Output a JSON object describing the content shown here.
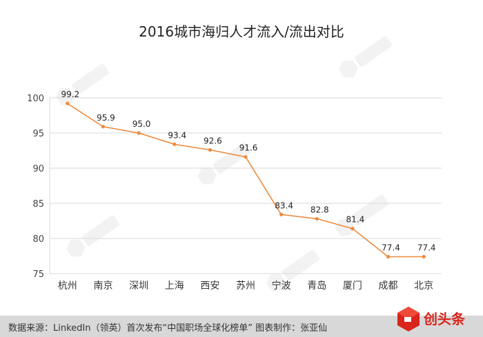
{
  "chart_data": {
    "type": "line",
    "title": "2016城市海归人才流入/流出对比",
    "categories": [
      "杭州",
      "南京",
      "深圳",
      "上海",
      "西安",
      "苏州",
      "宁波",
      "青岛",
      "厦门",
      "成都",
      "北京"
    ],
    "series": [
      {
        "values": [
          99.2,
          95.9,
          95.0,
          93.4,
          92.6,
          91.6,
          83.4,
          82.8,
          81.4,
          77.4,
          77.4
        ]
      }
    ],
    "data_labels": [
      "99.2",
      "95.9",
      "95.0",
      "93.4",
      "92.6",
      "91.6",
      "83.4",
      "82.8",
      "81.4",
      "77.4",
      "77.4"
    ],
    "ylim": [
      75,
      100
    ],
    "yticks": [
      75,
      80,
      85,
      90,
      95,
      100
    ],
    "grid": true,
    "line_color": "#ee8a3c"
  },
  "footer": {
    "source": "数据来源：LinkedIn（领英）首次发布“中国职场全球化榜单”   图表制作：张亚仙"
  },
  "brand": {
    "logo_text": "创头条",
    "icon": "cube-logo-icon"
  }
}
